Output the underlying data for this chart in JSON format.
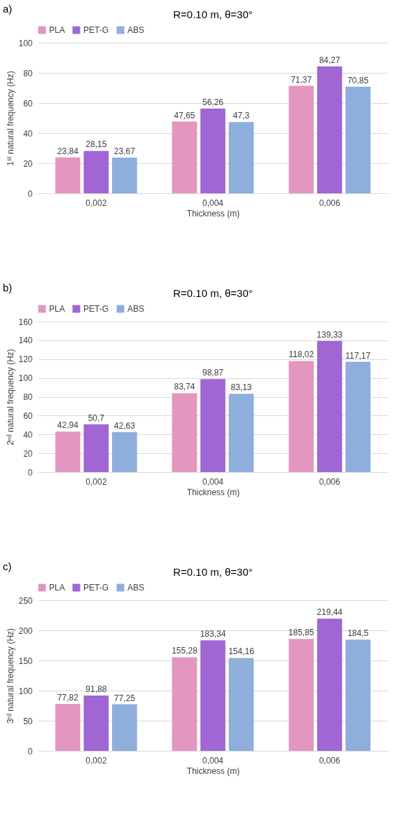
{
  "chart_data": [
    {
      "type": "bar",
      "title": "R=0.10 m, θ=30°",
      "annotations": [
        "a)"
      ],
      "xlabel": "Thickness (m)",
      "ylabel": "1ˢᵗ natural frequency (Hz)",
      "categories": [
        "0,002",
        "0,004",
        "0,006"
      ],
      "ylim": [
        0,
        100
      ],
      "yticks": [
        0,
        20,
        40,
        60,
        80,
        100
      ],
      "grid": "y",
      "legend": "top",
      "series": [
        {
          "name": "PLA",
          "color": "#e396bf",
          "values": [
            23.84,
            47.65,
            71.37
          ],
          "value_labels": [
            "23,84",
            "47,65",
            "71,37"
          ]
        },
        {
          "name": "PET-G",
          "color": "#a066d3",
          "values": [
            28.15,
            56.26,
            84.27
          ],
          "value_labels": [
            "28,15",
            "56,26",
            "84,27"
          ]
        },
        {
          "name": "ABS",
          "color": "#8eaedc",
          "values": [
            23.67,
            47.3,
            70.85
          ],
          "value_labels": [
            "23,67",
            "47,3",
            "70,85"
          ]
        }
      ]
    },
    {
      "type": "bar",
      "title": "R=0.10 m, θ=30°",
      "annotations": [
        "b)"
      ],
      "xlabel": "Thickness (m)",
      "ylabel": "2ⁿᵈ natural frequency (Hz)",
      "categories": [
        "0,002",
        "0,004",
        "0,006"
      ],
      "ylim": [
        0,
        160
      ],
      "yticks": [
        0,
        20,
        40,
        60,
        80,
        100,
        120,
        140,
        160
      ],
      "grid": "y",
      "legend": "top",
      "series": [
        {
          "name": "PLA",
          "color": "#e396bf",
          "values": [
            42.94,
            83.74,
            118.02
          ],
          "value_labels": [
            "42,94",
            "83,74",
            "118,02"
          ]
        },
        {
          "name": "PET-G",
          "color": "#a066d3",
          "values": [
            50.7,
            98.87,
            139.33
          ],
          "value_labels": [
            "50,7",
            "98,87",
            "139,33"
          ]
        },
        {
          "name": "ABS",
          "color": "#8eaedc",
          "values": [
            42.63,
            83.13,
            117.17
          ],
          "value_labels": [
            "42,63",
            "83,13",
            "117,17"
          ]
        }
      ]
    },
    {
      "type": "bar",
      "title": "R=0.10 m, θ=30°",
      "annotations": [
        "c)"
      ],
      "xlabel": "Thickness (m)",
      "ylabel": "3ʳᵈ natural frequency (Hz)",
      "categories": [
        "0,002",
        "0,004",
        "0,006"
      ],
      "ylim": [
        0,
        250
      ],
      "yticks": [
        0,
        50,
        100,
        150,
        200,
        250
      ],
      "grid": "y",
      "legend": "top",
      "series": [
        {
          "name": "PLA",
          "color": "#e396bf",
          "values": [
            77.82,
            155.28,
            185.85
          ],
          "value_labels": [
            "77,82",
            "155,28",
            "185,85"
          ]
        },
        {
          "name": "PET-G",
          "color": "#a066d3",
          "values": [
            91.88,
            183.34,
            219.44
          ],
          "value_labels": [
            "91,88",
            "183,34",
            "219,44"
          ]
        },
        {
          "name": "ABS",
          "color": "#8eaedc",
          "values": [
            77.25,
            154.16,
            184.5
          ],
          "value_labels": [
            "77,25",
            "154,16",
            "184,5"
          ]
        }
      ]
    }
  ]
}
